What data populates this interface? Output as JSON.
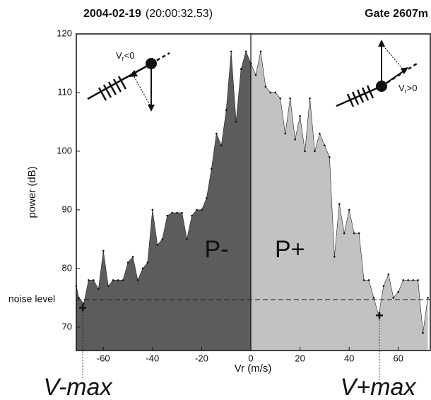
{
  "chart_data": {
    "type": "area",
    "title": {
      "date": "2004-02-19",
      "time": "(20:00:32.53)",
      "gate": "Gate 2607m"
    },
    "x_label": "Vr (m/s)",
    "y_label": "power (dB)",
    "xlim": [
      -71,
      73
    ],
    "ylim": [
      66,
      120
    ],
    "xticks": [
      -60,
      -40,
      -20,
      0,
      20,
      40,
      60
    ],
    "yticks": [
      70,
      80,
      90,
      100,
      110,
      120
    ],
    "series": [
      {
        "name": "P-",
        "color": "#5c5c5c",
        "x": [
          -71,
          -70,
          -68,
          -66,
          -64,
          -62,
          -60,
          -58,
          -56,
          -54,
          -52,
          -50,
          -48,
          -46,
          -44,
          -42,
          -40,
          -38,
          -36,
          -34,
          -32,
          -30,
          -28,
          -26,
          -24,
          -22,
          -20,
          -18,
          -16,
          -14,
          -12,
          -10,
          -8,
          -6,
          -4,
          -2,
          0
        ],
        "values": [
          77,
          75,
          74,
          78,
          78,
          76.5,
          83,
          77,
          78,
          78,
          78,
          81,
          82,
          78,
          80,
          81,
          90,
          84,
          85,
          89,
          89.5,
          89.5,
          89.5,
          85,
          89,
          90,
          90,
          92,
          97,
          103,
          101,
          107,
          117,
          105,
          114,
          117,
          115
        ]
      },
      {
        "name": "P+",
        "color": "#c2c2c2",
        "x": [
          0,
          2,
          4,
          6,
          8,
          10,
          12,
          14,
          16,
          18,
          20,
          22,
          24,
          26,
          28,
          30,
          32,
          34,
          36,
          38,
          40,
          42,
          44,
          46,
          48,
          50,
          52,
          54,
          56,
          58,
          60,
          62,
          64,
          66,
          68,
          70,
          72
        ],
        "values": [
          115,
          113,
          117,
          111,
          110,
          110,
          109,
          103,
          109,
          102,
          106,
          100,
          109,
          100,
          103,
          101,
          99,
          82,
          91,
          86,
          90,
          86,
          86,
          78,
          78,
          75,
          72,
          77,
          79,
          75,
          76,
          78,
          78,
          78,
          78,
          69,
          75
        ]
      }
    ],
    "noise_level": {
      "label": "noise level",
      "value": 74.7
    },
    "markers": [
      {
        "label": "V-max",
        "x": -68.4,
        "y": 73.3
      },
      {
        "label": "V+max",
        "x": 52.3,
        "y": 72
      }
    ],
    "icons": [
      {
        "base": "V",
        "sub": "r",
        "rest": "<0"
      },
      {
        "base": "V",
        "sub": "r",
        "rest": ">0"
      }
    ]
  }
}
